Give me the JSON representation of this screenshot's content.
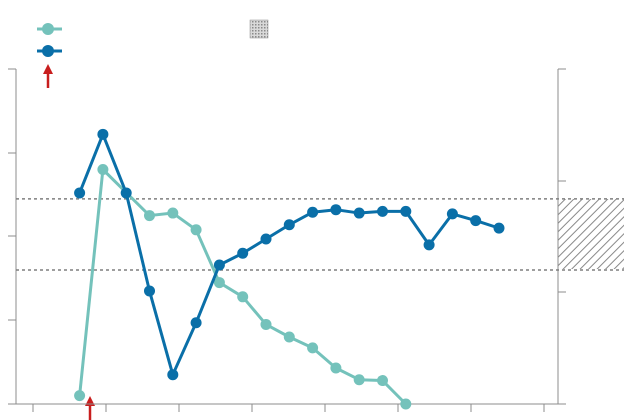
{
  "chart_data": {
    "type": "line",
    "x_categories": 21,
    "grid": false,
    "legend_position": "top-left",
    "reference_band": {
      "upper": 2.45,
      "lower": 1.6
    },
    "ylim": [
      0,
      4
    ],
    "colors": {
      "series_1": "#74c2bb",
      "series_2": "#0a6fa8",
      "annotation_arrow": "#c81e1e",
      "reference_line": "#7f7f7f"
    },
    "series": [
      {
        "values": [
          0.1,
          2.8,
          null,
          2.25,
          2.28,
          2.08,
          1.45,
          1.28,
          0.95,
          0.8,
          0.67,
          0.43,
          0.29,
          0.28,
          0.0
        ]
      },
      {
        "values": [
          2.52,
          3.22,
          2.52,
          1.35,
          0.35,
          0.97,
          1.66,
          1.8,
          1.97,
          2.14,
          2.29,
          2.32,
          2.28,
          2.3,
          2.3,
          1.9,
          2.27,
          2.19,
          2.1
        ]
      }
    ]
  }
}
